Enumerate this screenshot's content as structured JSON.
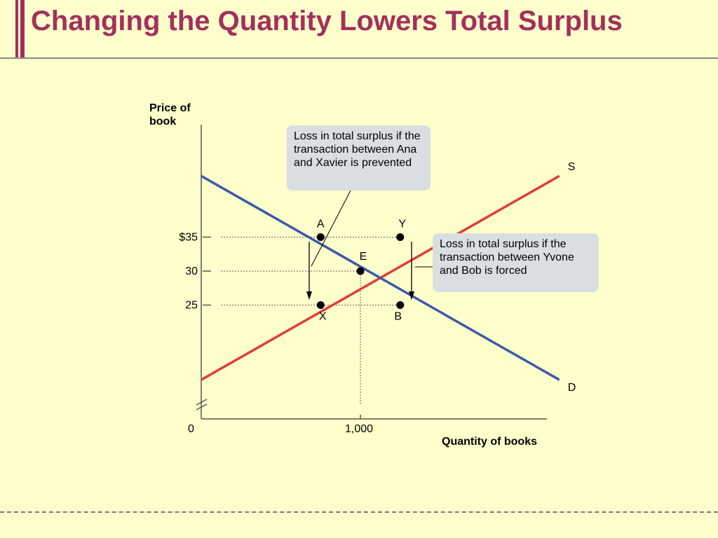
{
  "title": "Changing the Quantity Lowers Total Surplus",
  "chart_data": {
    "type": "line",
    "ylabel_line1": "Price of",
    "ylabel_line2": "book",
    "xlabel": "Quantity of books",
    "x_ticks": [
      "0",
      "1,000"
    ],
    "y_ticks": [
      "$35",
      "30",
      "25"
    ],
    "series": [
      {
        "name": "S",
        "color": "#e03c3c",
        "points": [
          [
            0,
            14
          ],
          [
            2250,
            44
          ]
        ]
      },
      {
        "name": "D",
        "color": "#3b5aa8",
        "points": [
          [
            0,
            44
          ],
          [
            2250,
            14
          ]
        ]
      }
    ],
    "points": [
      {
        "label": "A",
        "x": 750,
        "y": 35
      },
      {
        "label": "Y",
        "x": 1250,
        "y": 35
      },
      {
        "label": "E",
        "x": 1000,
        "y": 30
      },
      {
        "label": "X",
        "x": 750,
        "y": 25
      },
      {
        "label": "B",
        "x": 1250,
        "y": 25
      }
    ],
    "annotations": [
      "Loss in total surplus if the transaction between  Ana and Xavier is prevented",
      "Loss in total surplus if the transaction between Yvone and Bob is forced"
    ]
  },
  "colors": {
    "title": "#a3305c",
    "supply": "#e03c3c",
    "demand": "#3b5aa8",
    "callout_bg": "#d9dfe0",
    "background": "#ffffcc"
  }
}
